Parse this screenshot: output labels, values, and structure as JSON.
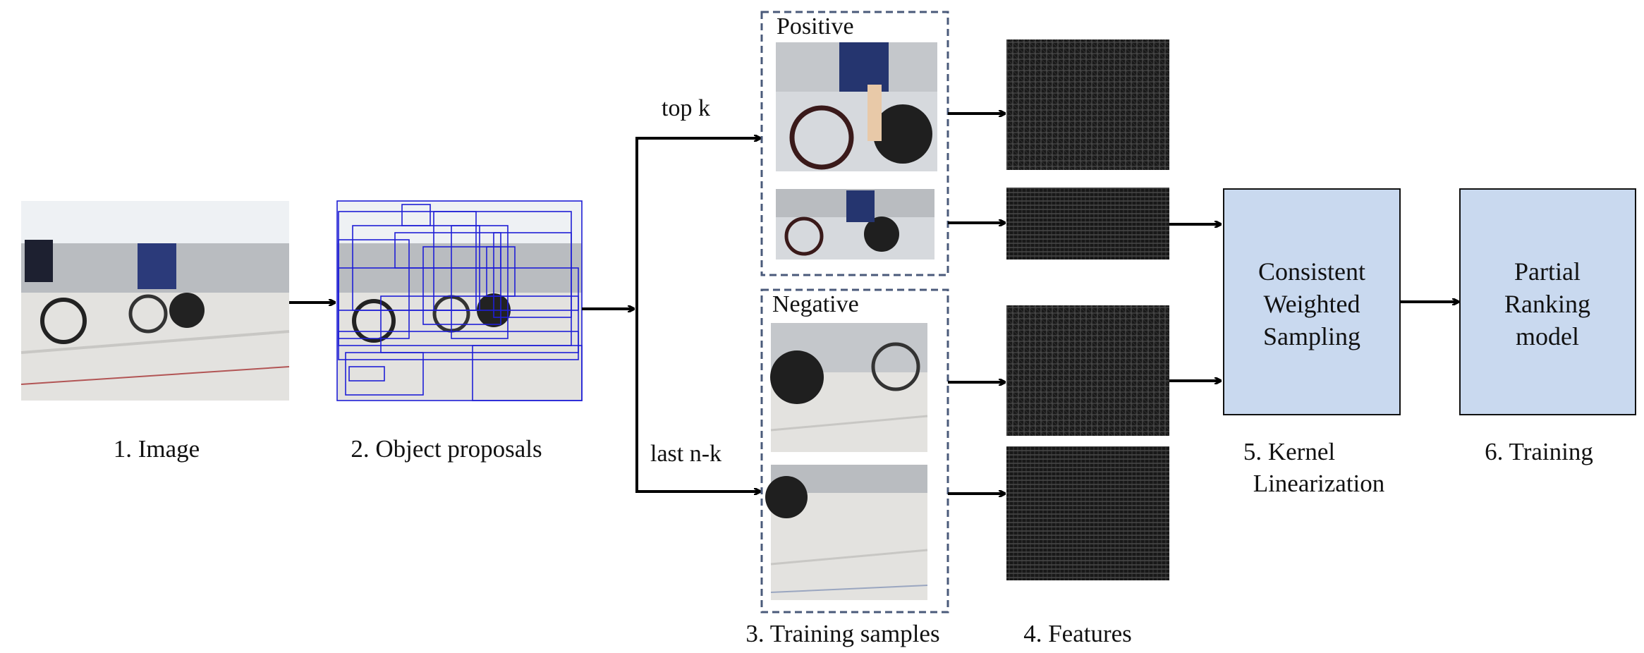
{
  "steps": {
    "image": "1. Image",
    "proposals": "2. Object proposals",
    "samples": "3. Training samples",
    "features": "4. Features",
    "kernel_line1": "5. Kernel",
    "kernel_line2": "Linearization",
    "training": "6. Training"
  },
  "branches": {
    "top": "top  k",
    "bottom": "last n-k"
  },
  "groups": {
    "positive": "Positive",
    "negative": "Negative"
  },
  "boxes": {
    "cws": [
      "Consistent",
      "Weighted",
      "Sampling"
    ],
    "prm": [
      "Partial",
      "Ranking",
      "model"
    ]
  },
  "colors": {
    "box_fill": "#c9d9ef",
    "dashed_border": "#4a5a7a",
    "proposal_boxes": "#1f1fd6",
    "arrow": "#000000"
  }
}
